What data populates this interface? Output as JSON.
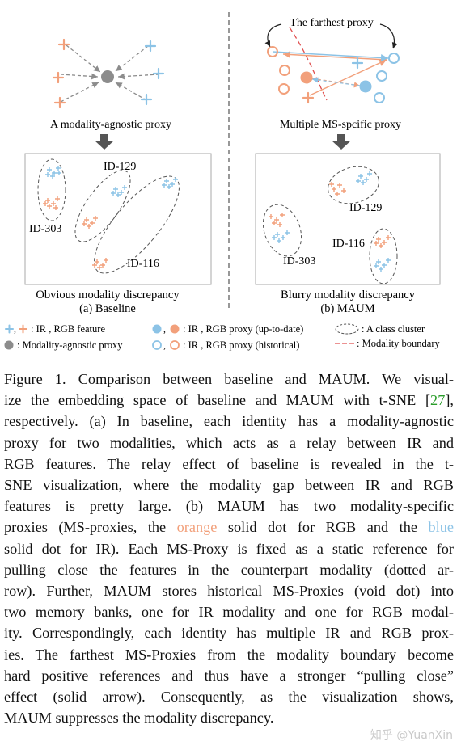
{
  "figure": {
    "left": {
      "proxy_label": "A modality-agnostic proxy",
      "cluster_labels": [
        "ID-129",
        "ID-303",
        "ID-116"
      ],
      "caption_top": "Obvious  modality discrepancy",
      "caption_sub": "(a) Baseline"
    },
    "right": {
      "farthest_label": "The farthest proxy",
      "proxy_label": "Multiple MS-spcific proxy",
      "cluster_labels": [
        "ID-129",
        "ID-116",
        "ID-303"
      ],
      "caption_top": "Blurry modality discrepancy",
      "caption_sub": "(b) MAUM"
    },
    "legend": {
      "feature": ": IR , RGB feature",
      "agnostic": ": Modality-agnostic  proxy",
      "ms_proxy_uptodate": ": IR , RGB proxy (up-to-date)",
      "ms_proxy_historical": ": IR , RGB proxy (historical)",
      "class_cluster": ": A class cluster",
      "modality_boundary": ": Modality boundary",
      "comma": ","
    },
    "colors": {
      "ir": "#8cc3e6",
      "rgb": "#f2a07b",
      "gray": "#8c8c8c"
    }
  },
  "caption": {
    "line1": "Figure 1. Comparison between baseline and MAUM. We visual-",
    "line2a": "ize the embedding space of baseline and MAUM with t-SNE [",
    "ref": "27",
    "line2b": "],",
    "line3": "respectively. (a) In baseline, each identity has a modality-agnostic",
    "line4": "proxy for two modalities, which acts as a relay between IR and",
    "line5": "RGB features. The relay effect of baseline is revealed in the t-",
    "line6": "SNE visualization, where the modality gap between IR and RGB",
    "line7": "features is pretty large. (b) MAUM has two modality-specific",
    "line8a": "proxies (MS-proxies, the ",
    "orange_word": "orange",
    "line8b": " solid dot for RGB and the ",
    "blue_word": "blue",
    "line9": "solid dot for IR). Each MS-Proxy is fixed as a static reference for",
    "line10": "pulling close the features in the counterpart modality (dotted ar-",
    "line11": "row). Further, MAUM stores historical MS-Proxies (void dot) into",
    "line12": "two memory banks, one for IR modality and one for RGB modal-",
    "line13": "ity. Correspondingly, each identity has multiple IR and RGB prox-",
    "line14": "ies. The farthest MS-Proxies from the modality boundary become",
    "line15": "hard positive references and thus have a stronger “pulling close”",
    "line16": "effect (solid arrow). Consequently, as the visualization shows,",
    "line17": "MAUM suppresses the modality discrepancy."
  },
  "watermark": "知乎 @YuanXin"
}
